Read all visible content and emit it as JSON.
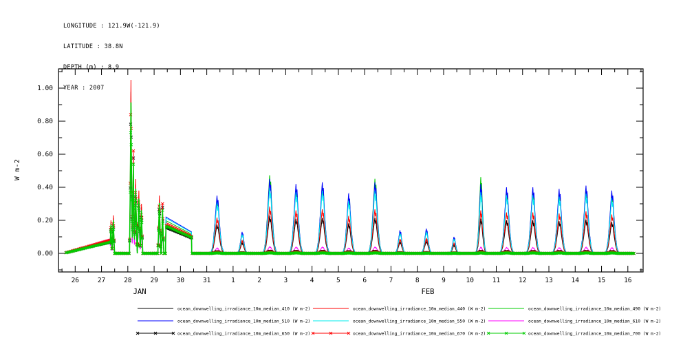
{
  "header": {
    "longitude": "LONGITUDE : 121.9W(-121.9)",
    "latitude": "LATITUDE : 38.8N",
    "depth": "DEPTH (m) : 8.9",
    "year": "YEAR : 2007"
  },
  "chart_data": {
    "type": "line",
    "description": "Time series of ocean downwelling irradiance (10 m median) at nine wavelengths, 26 Jan - 16 Feb 2007, with diurnal peaks",
    "x_axis": {
      "lim": [
        25.37,
        47.58
      ],
      "domain": [
        25.65,
        47.25
      ],
      "minor_step": 0.5,
      "ticks": [
        {
          "t": 26,
          "label": "26"
        },
        {
          "t": 27,
          "label": "27"
        },
        {
          "t": 28,
          "label": "28"
        },
        {
          "t": 29,
          "label": "29"
        },
        {
          "t": 30,
          "label": "30"
        },
        {
          "t": 31,
          "label": "31"
        },
        {
          "t": 32,
          "label": "1"
        },
        {
          "t": 33,
          "label": "2"
        },
        {
          "t": 34,
          "label": "3"
        },
        {
          "t": 35,
          "label": "4"
        },
        {
          "t": 36,
          "label": "5"
        },
        {
          "t": 37,
          "label": "6"
        },
        {
          "t": 38,
          "label": "7"
        },
        {
          "t": 39,
          "label": "8"
        },
        {
          "t": 40,
          "label": "9"
        },
        {
          "t": 41,
          "label": "10"
        },
        {
          "t": 42,
          "label": "11"
        },
        {
          "t": 43,
          "label": "12"
        },
        {
          "t": 44,
          "label": "13"
        },
        {
          "t": 45,
          "label": "14"
        },
        {
          "t": 46,
          "label": "15"
        },
        {
          "t": 47,
          "label": "16"
        }
      ],
      "month_labels": [
        {
          "t": 28.45,
          "label": "JAN"
        },
        {
          "t": 39.4,
          "label": "FEB"
        }
      ]
    },
    "y_axis": {
      "label": "W m-2",
      "lim": [
        -0.1125,
        1.1167
      ],
      "minor_step": 0.1,
      "ticks": [
        {
          "v": 0.0,
          "label": "0.00"
        },
        {
          "v": 0.2,
          "label": "0.20"
        },
        {
          "v": 0.4,
          "label": "0.40"
        },
        {
          "v": 0.6,
          "label": "0.60"
        },
        {
          "v": 0.8,
          "label": "0.80"
        },
        {
          "v": 1.0,
          "label": "1.00"
        }
      ]
    },
    "series": [
      {
        "key": "410",
        "wavelength_nm": 410,
        "label": "ocean_downwelling_irradiance_10m_median_410 (W m-2)",
        "color": "#000000",
        "marker": "none",
        "mults": {
          "ramp": 0.75,
          "spike": 0.72,
          "ramp2": 0.68,
          "daily": 0.5
        }
      },
      {
        "key": "440",
        "wavelength_nm": 440,
        "label": "ocean_downwelling_irradiance_10m_median_440 (W m-2)",
        "color": "#ff0000",
        "marker": "none",
        "mults": {
          "ramp": 0.95,
          "spike": 0.85,
          "ramp2": 0.85,
          "daily": 0.62
        }
      },
      {
        "key": "490",
        "wavelength_nm": 490,
        "label": "ocean_downwelling_irradiance_10m_median_490 (W m-2)",
        "color": "#00cc00",
        "marker": "none",
        "mults": {
          "ramp": 0.88,
          "spike": 0.8,
          "ramp2": 0.9,
          "daily": 0.97
        }
      },
      {
        "key": "510",
        "wavelength_nm": 510,
        "label": "ocean_downwelling_irradiance_10m_median_510 (W m-2)",
        "color": "#0000ff",
        "marker": "none",
        "mults": {
          "ramp": 0.82,
          "spike": 0.65,
          "ramp2": 1.0,
          "daily": 1.0
        }
      },
      {
        "key": "550",
        "wavelength_nm": 550,
        "label": "ocean_downwelling_irradiance_10m_median_550 (W m-2)",
        "color": "#00eeee",
        "marker": "none",
        "mults": {
          "ramp": 0.85,
          "spike": 0.68,
          "ramp2": 0.97,
          "daily": 0.88
        }
      },
      {
        "key": "610",
        "wavelength_nm": 610,
        "label": "ocean_downwelling_irradiance_10m_median_610 (W m-2)",
        "color": "#ff00ff",
        "marker": "none",
        "mults": {
          "ramp": 1.1,
          "spike": 0.55,
          "ramp2": 0.8,
          "daily": 0.09
        }
      },
      {
        "key": "650",
        "wavelength_nm": 650,
        "label": "ocean_downwelling_irradiance_10m_median_650 (W m-2)",
        "color": "#000000",
        "marker": "x",
        "mults": {
          "ramp": 0.9,
          "spike": 0.93,
          "ramp2": 0.72,
          "daily": 0.03
        }
      },
      {
        "key": "670",
        "wavelength_nm": 670,
        "label": "ocean_downwelling_irradiance_10m_median_670 (W m-2)",
        "color": "#ff0000",
        "marker": "x",
        "mults": {
          "ramp": 1.0,
          "spike": 1.0,
          "ramp2": 0.78,
          "daily": 0.02
        }
      },
      {
        "key": "700",
        "wavelength_nm": 700,
        "label": "ocean_downwelling_irradiance_10m_median_700 (W m-2)",
        "color": "#00cc00",
        "marker": "x",
        "mults": {
          "ramp": 0.85,
          "spike": 0.87,
          "ramp2": 0.75,
          "daily": 0.008
        }
      }
    ],
    "events": [
      {
        "type": "ramp",
        "group": "ramp",
        "date": "Jan 26-27",
        "t0": 25.65,
        "t1": 27.33,
        "v0": 0.004,
        "v1": 0.08
      },
      {
        "type": "peak",
        "group": "spike",
        "date": "Jan 27",
        "t": 27.36,
        "h": 0.2,
        "w": 0.05
      },
      {
        "type": "peak",
        "group": "spike",
        "date": "Jan 27",
        "t": 27.45,
        "h": 0.23,
        "w": 0.05
      },
      {
        "type": "peak",
        "group": "spike",
        "date": "Jan 28",
        "t": 28.12,
        "h": 1.05,
        "w": 0.055
      },
      {
        "type": "peak",
        "group": "spike",
        "date": "Jan 28",
        "t": 28.21,
        "h": 0.62,
        "w": 0.05
      },
      {
        "type": "peak",
        "group": "spike",
        "date": "Jan 28",
        "t": 28.3,
        "h": 0.45,
        "w": 0.06
      },
      {
        "type": "peak",
        "group": "spike",
        "date": "Jan 28",
        "t": 28.42,
        "h": 0.38,
        "w": 0.06
      },
      {
        "type": "peak",
        "group": "spike",
        "date": "Jan 28",
        "t": 28.52,
        "h": 0.3,
        "w": 0.05
      },
      {
        "type": "peak",
        "group": "spike",
        "date": "Jan 29",
        "t": 29.2,
        "h": 0.35,
        "w": 0.06
      },
      {
        "type": "peak",
        "group": "spike",
        "date": "Jan 29",
        "t": 29.32,
        "h": 0.3,
        "w": 0.05
      },
      {
        "type": "ramp",
        "group": "ramp2",
        "date": "Jan 29-30",
        "t0": 29.45,
        "t1": 30.42,
        "v0": 0.22,
        "v1": 0.13
      },
      {
        "type": "peak",
        "group": "daily",
        "date": "Jan 31",
        "t": 31.4,
        "h": 0.35,
        "w": 0.26
      },
      {
        "type": "peak",
        "group": "daily",
        "date": "Feb 1",
        "t": 32.35,
        "h": 0.13,
        "w": 0.2
      },
      {
        "type": "peak",
        "group": "daily",
        "date": "Feb 2",
        "t": 33.4,
        "h": 0.45,
        "w": 0.26,
        "boost": {
          "490": 1.05
        }
      },
      {
        "type": "peak",
        "group": "daily",
        "date": "Feb 3",
        "t": 34.4,
        "h": 0.42,
        "w": 0.26
      },
      {
        "type": "peak",
        "group": "daily",
        "date": "Feb 4",
        "t": 35.4,
        "h": 0.43,
        "w": 0.26
      },
      {
        "type": "peak",
        "group": "daily",
        "date": "Feb 5",
        "t": 36.4,
        "h": 0.36,
        "w": 0.24
      },
      {
        "type": "peak",
        "group": "daily",
        "date": "Feb 6",
        "t": 37.4,
        "h": 0.43,
        "w": 0.26,
        "boost": {
          "490": 1.05
        }
      },
      {
        "type": "peak",
        "group": "daily",
        "date": "Feb 7",
        "t": 38.35,
        "h": 0.14,
        "w": 0.2
      },
      {
        "type": "peak",
        "group": "daily",
        "date": "Feb 8",
        "t": 39.35,
        "h": 0.15,
        "w": 0.2
      },
      {
        "type": "peak",
        "group": "daily",
        "date": "Feb 9",
        "t": 40.4,
        "h": 0.1,
        "w": 0.18
      },
      {
        "type": "peak",
        "group": "daily",
        "date": "Feb 10",
        "t": 41.42,
        "h": 0.42,
        "w": 0.2,
        "boost": {
          "490": 1.1
        }
      },
      {
        "type": "peak",
        "group": "daily",
        "date": "Feb 11",
        "t": 42.4,
        "h": 0.4,
        "w": 0.26
      },
      {
        "type": "peak",
        "group": "daily",
        "date": "Feb 12",
        "t": 43.4,
        "h": 0.4,
        "w": 0.26
      },
      {
        "type": "peak",
        "group": "daily",
        "date": "Feb 13",
        "t": 44.4,
        "h": 0.39,
        "w": 0.26
      },
      {
        "type": "peak",
        "group": "daily",
        "date": "Feb 14",
        "t": 45.42,
        "h": 0.41,
        "w": 0.26
      },
      {
        "type": "peak",
        "group": "daily",
        "date": "Feb 15",
        "t": 46.4,
        "h": 0.38,
        "w": 0.26
      }
    ]
  }
}
